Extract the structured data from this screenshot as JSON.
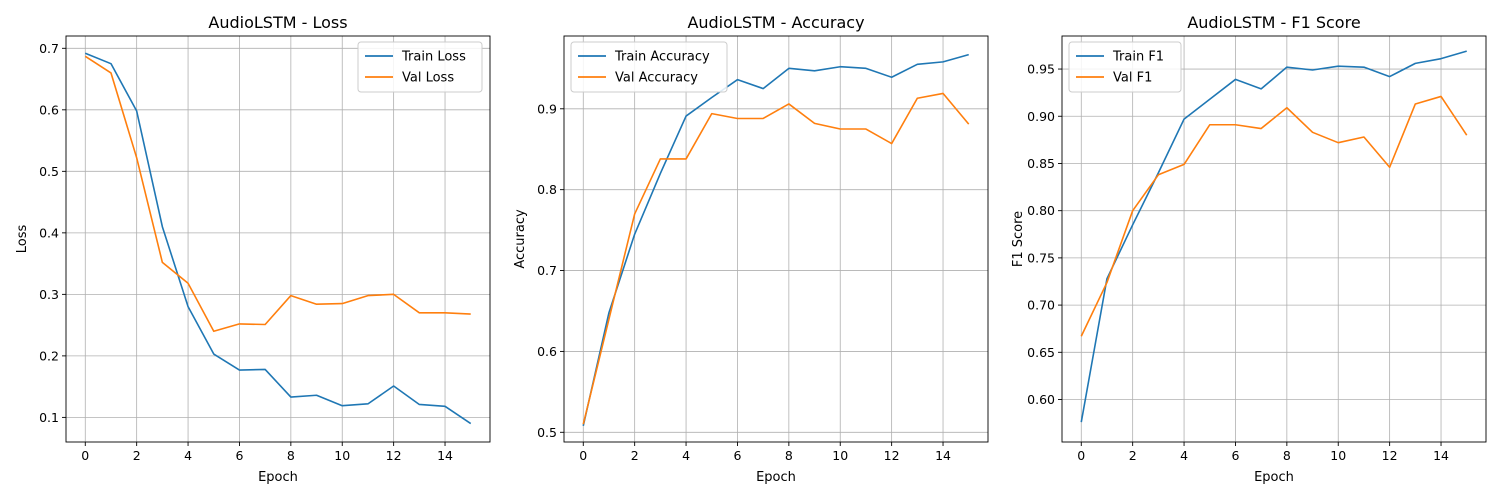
{
  "chart_data": [
    {
      "type": "line",
      "title": "AudioLSTM - Loss",
      "xlabel": "Epoch",
      "ylabel": "Loss",
      "x": [
        0,
        1,
        2,
        3,
        4,
        5,
        6,
        7,
        8,
        9,
        10,
        11,
        12,
        13,
        14,
        15
      ],
      "xlim": [
        -0.75,
        15.75
      ],
      "ylim": [
        0.06,
        0.72
      ],
      "xticks": [
        0,
        2,
        4,
        6,
        8,
        10,
        12,
        14
      ],
      "yticks": [
        0.1,
        0.2,
        0.3,
        0.4,
        0.5,
        0.6,
        0.7
      ],
      "ytick_decimals": 1,
      "grid": true,
      "legend": "top-right",
      "series": [
        {
          "name": "Train Loss",
          "color": "#1f77b4",
          "values": [
            0.692,
            0.675,
            0.598,
            0.41,
            0.28,
            0.203,
            0.177,
            0.178,
            0.133,
            0.136,
            0.119,
            0.122,
            0.151,
            0.121,
            0.118,
            0.09
          ]
        },
        {
          "name": "Val Loss",
          "color": "#ff7f0e",
          "values": [
            0.687,
            0.66,
            0.522,
            0.352,
            0.318,
            0.24,
            0.252,
            0.251,
            0.298,
            0.284,
            0.285,
            0.298,
            0.3,
            0.27,
            0.27,
            0.268
          ]
        }
      ]
    },
    {
      "type": "line",
      "title": "AudioLSTM - Accuracy",
      "xlabel": "Epoch",
      "ylabel": "Accuracy",
      "x": [
        0,
        1,
        2,
        3,
        4,
        5,
        6,
        7,
        8,
        9,
        10,
        11,
        12,
        13,
        14,
        15
      ],
      "xlim": [
        -0.75,
        15.75
      ],
      "ylim": [
        0.488,
        0.99
      ],
      "xticks": [
        0,
        2,
        4,
        6,
        8,
        10,
        12,
        14
      ],
      "yticks": [
        0.5,
        0.6,
        0.7,
        0.8,
        0.9
      ],
      "ytick_decimals": 1,
      "grid": true,
      "legend": "top-left",
      "series": [
        {
          "name": "Train Accuracy",
          "color": "#1f77b4",
          "values": [
            0.508,
            0.648,
            0.745,
            0.82,
            0.891,
            0.914,
            0.936,
            0.925,
            0.95,
            0.947,
            0.952,
            0.95,
            0.939,
            0.955,
            0.958,
            0.967
          ]
        },
        {
          "name": "Val Accuracy",
          "color": "#ff7f0e",
          "values": [
            0.51,
            0.64,
            0.77,
            0.838,
            0.838,
            0.894,
            0.888,
            0.888,
            0.906,
            0.882,
            0.875,
            0.875,
            0.857,
            0.913,
            0.919,
            0.881
          ]
        }
      ]
    },
    {
      "type": "line",
      "title": "AudioLSTM - F1 Score",
      "xlabel": "Epoch",
      "ylabel": "F1 Score",
      "x": [
        0,
        1,
        2,
        3,
        4,
        5,
        6,
        7,
        8,
        9,
        10,
        11,
        12,
        13,
        14,
        15
      ],
      "xlim": [
        -0.75,
        15.75
      ],
      "ylim": [
        0.555,
        0.985
      ],
      "xticks": [
        0,
        2,
        4,
        6,
        8,
        10,
        12,
        14
      ],
      "yticks": [
        0.6,
        0.65,
        0.7,
        0.75,
        0.8,
        0.85,
        0.9,
        0.95
      ],
      "ytick_decimals": 2,
      "grid": true,
      "legend": "top-left",
      "series": [
        {
          "name": "Train F1",
          "color": "#1f77b4",
          "values": [
            0.576,
            0.728,
            0.785,
            0.84,
            0.897,
            0.918,
            0.939,
            0.929,
            0.952,
            0.949,
            0.953,
            0.952,
            0.942,
            0.956,
            0.961,
            0.969
          ]
        },
        {
          "name": "Val F1",
          "color": "#ff7f0e",
          "values": [
            0.667,
            0.724,
            0.8,
            0.838,
            0.849,
            0.891,
            0.891,
            0.887,
            0.909,
            0.883,
            0.872,
            0.878,
            0.846,
            0.913,
            0.921,
            0.88
          ]
        }
      ]
    }
  ]
}
